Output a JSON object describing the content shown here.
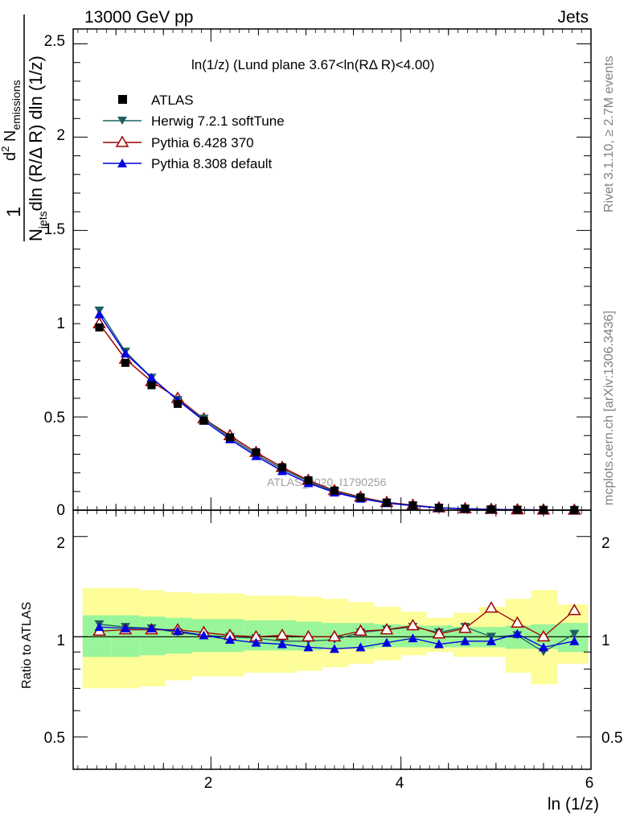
{
  "header": {
    "left": "13000 GeV pp",
    "right": "Jets"
  },
  "side_labels": {
    "rivet": "Rivet 3.1.10, ≥ 2.7M events",
    "mcplots": "mcplots.cern.ch [arXiv:1306.3436]"
  },
  "watermark": "ATLAS_2020_I1790256",
  "main_plot": {
    "title": "ln(1/z) (Lund plane 3.67<ln(RΔ R)<4.00)",
    "ylabel_parts": {
      "one": "1",
      "njets": "N",
      "njets_sub": "jets",
      "den_rest": "dln (R/Δ R) dln (1/z)",
      "num_d": "d",
      "num_sup": "2",
      "num_n": " N",
      "num_sub": "emissions"
    },
    "yticks": [
      "0",
      "0.5",
      "1",
      "1.5",
      "2",
      "2.5"
    ]
  },
  "ratio_plot": {
    "ylabel": "Ratio to ATLAS",
    "yticks": [
      "0.5",
      "1",
      "2"
    ],
    "yticks_right": [
      "0.5",
      "1",
      "2"
    ]
  },
  "xaxis": {
    "label": "ln (1/z)",
    "ticks": [
      "2",
      "4",
      "6"
    ]
  },
  "legend": [
    {
      "label": "ATLAS",
      "marker": "square-filled",
      "color": "#000000"
    },
    {
      "label": "Herwig 7.2.1 softTune",
      "marker": "triangle-down-filled",
      "color": "#1f6060"
    },
    {
      "label": "Pythia 6.428 370",
      "marker": "triangle-up-open",
      "color": "#a00000"
    },
    {
      "label": "Pythia 8.308 default",
      "marker": "triangle-up-filled",
      "color": "#0000e0"
    }
  ],
  "colors": {
    "band_inner": "#99f599",
    "band_outer": "#fdfd99"
  },
  "chart_data": {
    "type": "line",
    "main": {
      "x": [
        0.825,
        1.1,
        1.375,
        1.65,
        1.925,
        2.2,
        2.475,
        2.75,
        3.025,
        3.3,
        3.575,
        3.85,
        4.125,
        4.4,
        4.675,
        4.95,
        5.225,
        5.5,
        5.825
      ],
      "ylim": [
        0,
        2.58
      ],
      "xlim": [
        0.55,
        6.0
      ],
      "series": [
        {
          "name": "ATLAS",
          "values": [
            0.98,
            0.79,
            0.67,
            0.57,
            0.48,
            0.39,
            0.31,
            0.23,
            0.16,
            0.105,
            0.068,
            0.04,
            0.025,
            0.013,
            0.008,
            0.004,
            0.002,
            0.001,
            0.0005
          ]
        },
        {
          "name": "Herwig 7.2.1 softTune",
          "values": [
            1.07,
            0.85,
            0.71,
            0.59,
            0.49,
            0.39,
            0.3,
            0.22,
            0.155,
            0.1,
            0.066,
            0.04,
            0.025,
            0.013,
            0.008,
            0.004,
            0.002,
            0.001,
            0.0005
          ]
        },
        {
          "name": "Pythia 6.428 370",
          "values": [
            1.0,
            0.81,
            0.69,
            0.6,
            0.49,
            0.4,
            0.31,
            0.23,
            0.16,
            0.105,
            0.07,
            0.042,
            0.027,
            0.013,
            0.008,
            0.005,
            0.002,
            0.001,
            0.0006
          ]
        },
        {
          "name": "Pythia 8.308 default",
          "values": [
            1.05,
            0.84,
            0.71,
            0.59,
            0.48,
            0.38,
            0.29,
            0.21,
            0.145,
            0.095,
            0.062,
            0.038,
            0.024,
            0.012,
            0.007,
            0.004,
            0.002,
            0.001,
            0.0005
          ]
        }
      ]
    },
    "ratio": {
      "x": [
        0.825,
        1.1,
        1.375,
        1.65,
        1.925,
        2.2,
        2.475,
        2.75,
        3.025,
        3.3,
        3.575,
        3.85,
        4.125,
        4.4,
        4.675,
        4.95,
        5.225,
        5.5,
        5.825
      ],
      "ylim": [
        0.4,
        2.4
      ],
      "log_scale": true,
      "bin_edges": [
        0.65,
        0.95,
        1.25,
        1.52,
        1.8,
        2.07,
        2.35,
        2.62,
        2.9,
        3.17,
        3.45,
        3.72,
        4.0,
        4.27,
        4.55,
        4.82,
        5.1,
        5.37,
        5.65,
        5.97
      ],
      "band_inner": [
        [
          0.87,
          1.16
        ],
        [
          0.87,
          1.16
        ],
        [
          0.88,
          1.15
        ],
        [
          0.89,
          1.14
        ],
        [
          0.9,
          1.13
        ],
        [
          0.9,
          1.13
        ],
        [
          0.91,
          1.12
        ],
        [
          0.91,
          1.12
        ],
        [
          0.91,
          1.11
        ],
        [
          0.92,
          1.1
        ],
        [
          0.92,
          1.1
        ],
        [
          0.93,
          1.09
        ],
        [
          0.93,
          1.08
        ],
        [
          0.93,
          1.08
        ],
        [
          0.93,
          1.07
        ],
        [
          0.93,
          1.07
        ],
        [
          0.92,
          1.08
        ],
        [
          0.92,
          1.09
        ],
        [
          0.9,
          1.1
        ]
      ],
      "band_outer": [
        [
          0.7,
          1.4
        ],
        [
          0.7,
          1.4
        ],
        [
          0.71,
          1.38
        ],
        [
          0.74,
          1.36
        ],
        [
          0.76,
          1.35
        ],
        [
          0.76,
          1.35
        ],
        [
          0.78,
          1.33
        ],
        [
          0.78,
          1.33
        ],
        [
          0.79,
          1.32
        ],
        [
          0.81,
          1.3
        ],
        [
          0.83,
          1.27
        ],
        [
          0.85,
          1.23
        ],
        [
          0.88,
          1.19
        ],
        [
          0.9,
          1.14
        ],
        [
          0.87,
          1.18
        ],
        [
          0.87,
          1.23
        ],
        [
          0.78,
          1.3
        ],
        [
          0.72,
          1.38
        ],
        [
          0.83,
          1.25
        ]
      ],
      "series": [
        {
          "name": "Herwig 7.2.1 softTune",
          "values": [
            1.09,
            1.07,
            1.06,
            1.03,
            1.01,
            1.0,
            0.99,
            0.97,
            0.97,
            0.98,
            1.03,
            1.05,
            1.07,
            1.03,
            1.07,
            1.0,
            1.01,
            0.9,
            1.02
          ]
        },
        {
          "name": "Pythia 6.428 370",
          "values": [
            1.04,
            1.05,
            1.05,
            1.05,
            1.03,
            1.01,
            1.0,
            1.01,
            1.0,
            1.0,
            1.04,
            1.05,
            1.08,
            1.02,
            1.06,
            1.22,
            1.1,
            1.0,
            1.2
          ]
        },
        {
          "name": "Pythia 8.308 default",
          "values": [
            1.07,
            1.06,
            1.06,
            1.04,
            1.01,
            0.98,
            0.96,
            0.95,
            0.93,
            0.92,
            0.93,
            0.96,
            0.99,
            0.95,
            0.97,
            0.97,
            1.02,
            0.93,
            0.97
          ]
        }
      ]
    }
  }
}
